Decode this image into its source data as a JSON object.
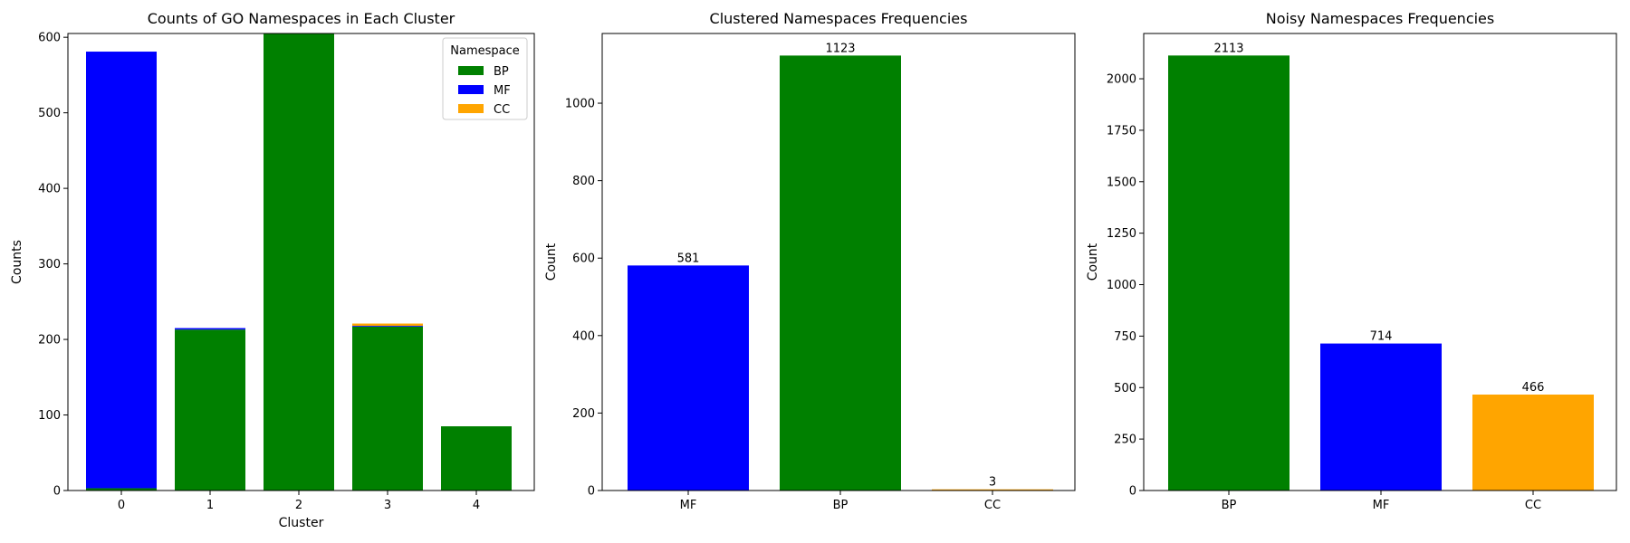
{
  "chart_data": [
    {
      "type": "bar",
      "stacked": true,
      "title": "Counts of GO Namespaces in Each Cluster",
      "xlabel": "Cluster",
      "ylabel": "Counts",
      "categories": [
        "0",
        "1",
        "2",
        "3",
        "4"
      ],
      "ylim": [
        0,
        605
      ],
      "yticks": [
        0,
        100,
        200,
        300,
        400,
        500,
        600
      ],
      "legend": {
        "title": "Namespace",
        "placement": "top-right"
      },
      "series": [
        {
          "name": "BP",
          "color": "#008000",
          "values": [
            3,
            213,
            605,
            217,
            85
          ]
        },
        {
          "name": "MF",
          "color": "#0000ff",
          "values": [
            578,
            2,
            0,
            1,
            0
          ]
        },
        {
          "name": "CC",
          "color": "#ffa500",
          "values": [
            0,
            0,
            0,
            3,
            0
          ]
        }
      ]
    },
    {
      "type": "bar",
      "title": "Clustered Namespaces Frequencies",
      "xlabel": "",
      "ylabel": "Count",
      "categories": [
        "MF",
        "BP",
        "CC"
      ],
      "values": [
        581,
        1123,
        3
      ],
      "colors": [
        "#0000ff",
        "#008000",
        "#ffa500"
      ],
      "ylim": [
        0,
        1180
      ],
      "yticks": [
        0,
        200,
        400,
        600,
        800,
        1000
      ],
      "data_labels": [
        "581",
        "1123",
        "3"
      ]
    },
    {
      "type": "bar",
      "title": "Noisy Namespaces Frequencies",
      "xlabel": "",
      "ylabel": "Count",
      "categories": [
        "BP",
        "MF",
        "CC"
      ],
      "values": [
        2113,
        714,
        466
      ],
      "colors": [
        "#008000",
        "#0000ff",
        "#ffa500"
      ],
      "ylim": [
        0,
        2220
      ],
      "yticks": [
        0,
        250,
        500,
        750,
        1000,
        1250,
        1500,
        1750,
        2000
      ],
      "data_labels": [
        "2113",
        "714",
        "466"
      ]
    }
  ]
}
